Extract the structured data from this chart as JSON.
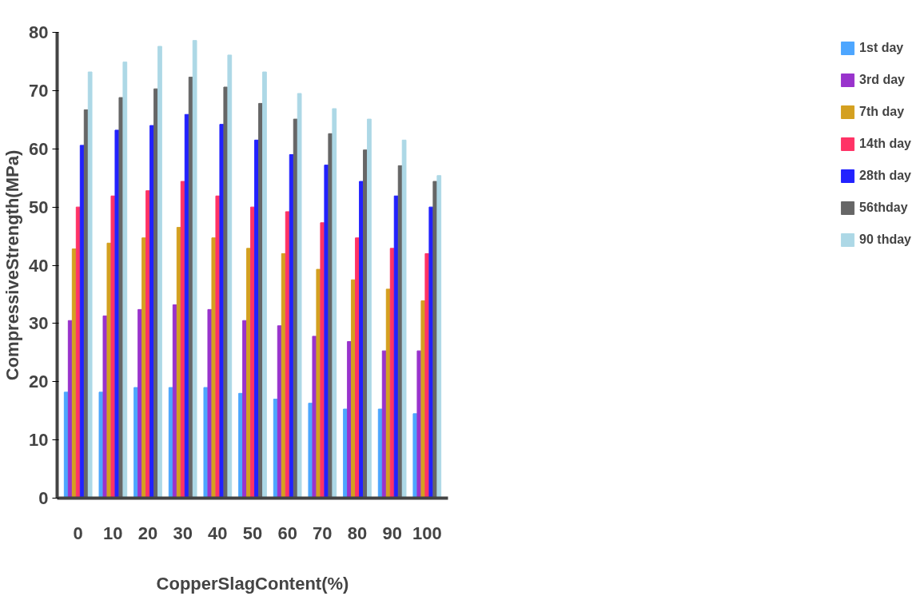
{
  "chart_data": {
    "type": "bar",
    "xlabel": "CopperSlagContent(%)",
    "ylabel": "CompressiveStrength(MPa)",
    "categories": [
      "0",
      "10",
      "20",
      "30",
      "40",
      "50",
      "60",
      "70",
      "80",
      "90",
      "100"
    ],
    "series": [
      {
        "name": "1st day",
        "color": "#4da6ff",
        "values": [
          18.2,
          18.2,
          19,
          19,
          19,
          18,
          17,
          16.3,
          15.3,
          15.3,
          14.5
        ]
      },
      {
        "name": "3rd day",
        "color": "#9933cc",
        "values": [
          30.5,
          31.3,
          32.4,
          33.2,
          32.4,
          30.5,
          29.6,
          27.8,
          26.9,
          25.3,
          25.3
        ]
      },
      {
        "name": "7th day",
        "color": "#d4a020",
        "values": [
          42.8,
          43.8,
          44.7,
          46.5,
          44.7,
          42.9,
          42,
          39.3,
          37.5,
          35.9,
          33.9
        ]
      },
      {
        "name": "14th day",
        "color": "#ff3366",
        "values": [
          50,
          51.9,
          52.8,
          54.4,
          51.9,
          50,
          49.2,
          47.3,
          44.7,
          42.9,
          42
        ]
      },
      {
        "name": "28th day",
        "color": "#2222ff",
        "values": [
          60.6,
          63.2,
          64,
          65.9,
          64.2,
          61.5,
          59,
          57.2,
          54.4,
          51.9,
          50
        ]
      },
      {
        "name": "56thday",
        "color": "#666666",
        "values": [
          66.7,
          68.8,
          70.3,
          72.3,
          70.6,
          67.8,
          65.1,
          62.6,
          59.8,
          57.1,
          54.4
        ]
      },
      {
        "name": "90 thday",
        "color": "#add8e6",
        "values": [
          73.2,
          74.9,
          77.6,
          78.6,
          76.1,
          73.2,
          69.5,
          66.9,
          65.1,
          61.5,
          55.4
        ]
      }
    ],
    "ylim": [
      0,
      80
    ],
    "yticks": [
      0,
      10,
      20,
      30,
      40,
      50,
      60,
      70,
      80
    ],
    "grid": false,
    "legend": "right"
  }
}
